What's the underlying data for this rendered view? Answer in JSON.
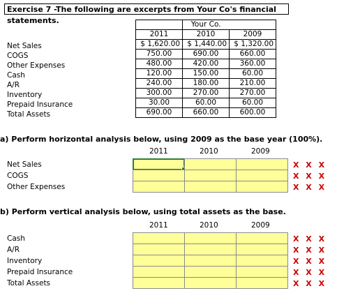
{
  "title": "Exercise 7 -The following are excerpts from Your Co's financial statements.",
  "company": "Your Co.",
  "years": [
    "2011",
    "2010",
    "2009"
  ],
  "rows": [
    {
      "label": "Net Sales",
      "v2011": "$ 1,620.00",
      "v2010": "$ 1,440.00",
      "v2009": "$ 1,320.00"
    },
    {
      "label": "COGS",
      "v2011": "750.00",
      "v2010": "690.00",
      "v2009": "660.00"
    },
    {
      "label": "Other Expenses",
      "v2011": "480.00",
      "v2010": "420.00",
      "v2009": "360.00"
    },
    {
      "label": "Cash",
      "v2011": "120.00",
      "v2010": "150.00",
      "v2009": "60.00"
    },
    {
      "label": "A/R",
      "v2011": "240.00",
      "v2010": "180.00",
      "v2009": "210.00"
    },
    {
      "label": "Inventory",
      "v2011": "300.00",
      "v2010": "270.00",
      "v2009": "270.00"
    },
    {
      "label": "Prepaid Insurance",
      "v2011": "30.00",
      "v2010": "60.00",
      "v2009": "60.00"
    },
    {
      "label": "Total Assets",
      "v2011": "690.00",
      "v2010": "660.00",
      "v2009": "600.00"
    }
  ],
  "part_a": {
    "heading": "a) Perform horizontal analysis below, using 2009 as the base year (100%).",
    "years": [
      "2011",
      "2010",
      "2009"
    ],
    "rows": [
      "Net Sales",
      "COGS",
      "Other Expenses"
    ],
    "marks": "X X X"
  },
  "part_b": {
    "heading": "b) Perform vertical analysis below, using total assets as the base.",
    "years": [
      "2011",
      "2010",
      "2009"
    ],
    "rows": [
      "Cash",
      "A/R",
      "Inventory",
      "Prepaid Insurance",
      "Total Assets"
    ],
    "marks": "X X X"
  },
  "colors": {
    "input_fill": "#ffff99",
    "mark": "#cc0000",
    "active_border": "#2e7d32"
  }
}
